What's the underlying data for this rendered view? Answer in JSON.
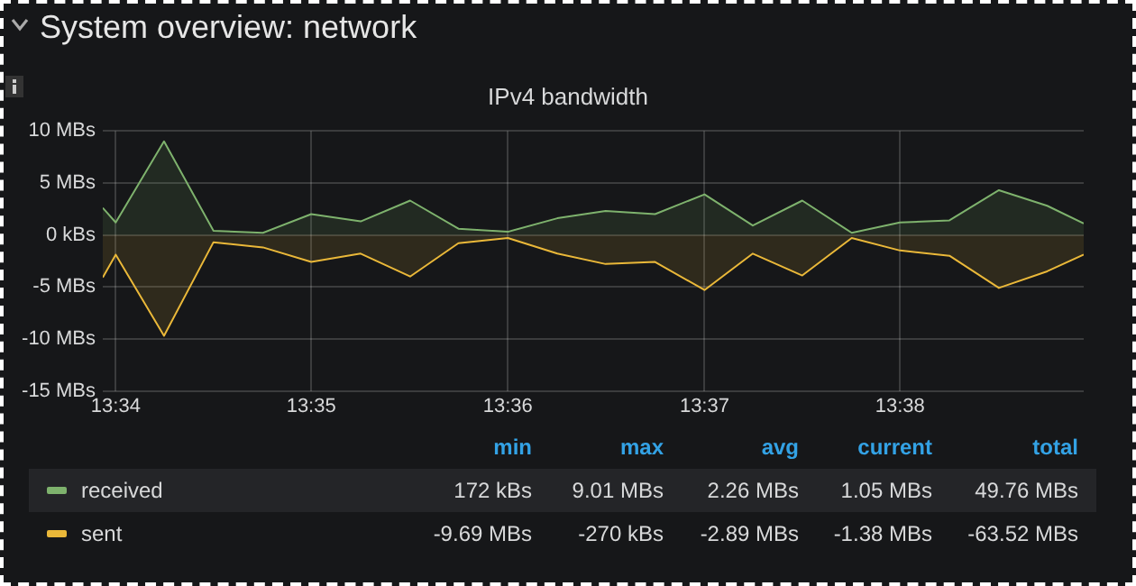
{
  "chart_data": {
    "type": "area",
    "title": "System overview: network",
    "subtitle": "IPv4 bandwidth",
    "x": [
      13.5656,
      13.5667,
      13.5708,
      13.575,
      13.5792,
      13.5833,
      13.5875,
      13.5917,
      13.5958,
      13.6,
      13.6042,
      13.6083,
      13.6125,
      13.6167,
      13.6208,
      13.625,
      13.6292,
      13.6333,
      13.6375,
      13.6417,
      13.6458,
      13.6489
    ],
    "series": [
      {
        "name": "received",
        "color": "#7eb26d",
        "values": [
          2.6,
          1.2,
          9.0,
          0.4,
          0.2,
          2.0,
          1.3,
          3.3,
          0.6,
          0.3,
          1.6,
          2.3,
          2.0,
          3.9,
          0.9,
          3.3,
          0.2,
          1.2,
          1.4,
          4.3,
          2.8,
          1.1
        ]
      },
      {
        "name": "sent",
        "color": "#eab839",
        "values": [
          -4.1,
          -1.9,
          -9.7,
          -0.7,
          -1.2,
          -2.6,
          -1.8,
          -4.0,
          -0.8,
          -0.3,
          -1.8,
          -2.8,
          -2.6,
          -5.3,
          -1.8,
          -3.9,
          -0.3,
          -1.5,
          -2.0,
          -5.1,
          -3.5,
          -1.9
        ]
      }
    ],
    "xlim": [
      13.5656,
      13.6489
    ],
    "xticks": [
      {
        "value": 13.5667,
        "label": "13:34"
      },
      {
        "value": 13.5833,
        "label": "13:35"
      },
      {
        "value": 13.6,
        "label": "13:36"
      },
      {
        "value": 13.6167,
        "label": "13:37"
      },
      {
        "value": 13.6333,
        "label": "13:38"
      }
    ],
    "ylim": [
      -15,
      10
    ],
    "yticks": [
      {
        "value": -15,
        "label": "-15 MBs"
      },
      {
        "value": -10,
        "label": "-10 MBs"
      },
      {
        "value": -5,
        "label": "-5 MBs"
      },
      {
        "value": 0,
        "label": "0 kBs"
      },
      {
        "value": 5,
        "label": "5 MBs"
      },
      {
        "value": 10,
        "label": "10 MBs"
      }
    ],
    "grid": true,
    "legend": "bottom",
    "marker": "none",
    "line_style": "solid",
    "annotations": [
      "min",
      "max",
      "avg",
      "current",
      "total",
      "172 kBs",
      "9.01 MBs",
      "2.26 MBs",
      "1.05 MBs",
      "49.76 MBs",
      "-9.69 MBs",
      "-270 kBs",
      "-2.89 MBs",
      "-1.38 MBs",
      "-63.52 MBs"
    ]
  }
}
